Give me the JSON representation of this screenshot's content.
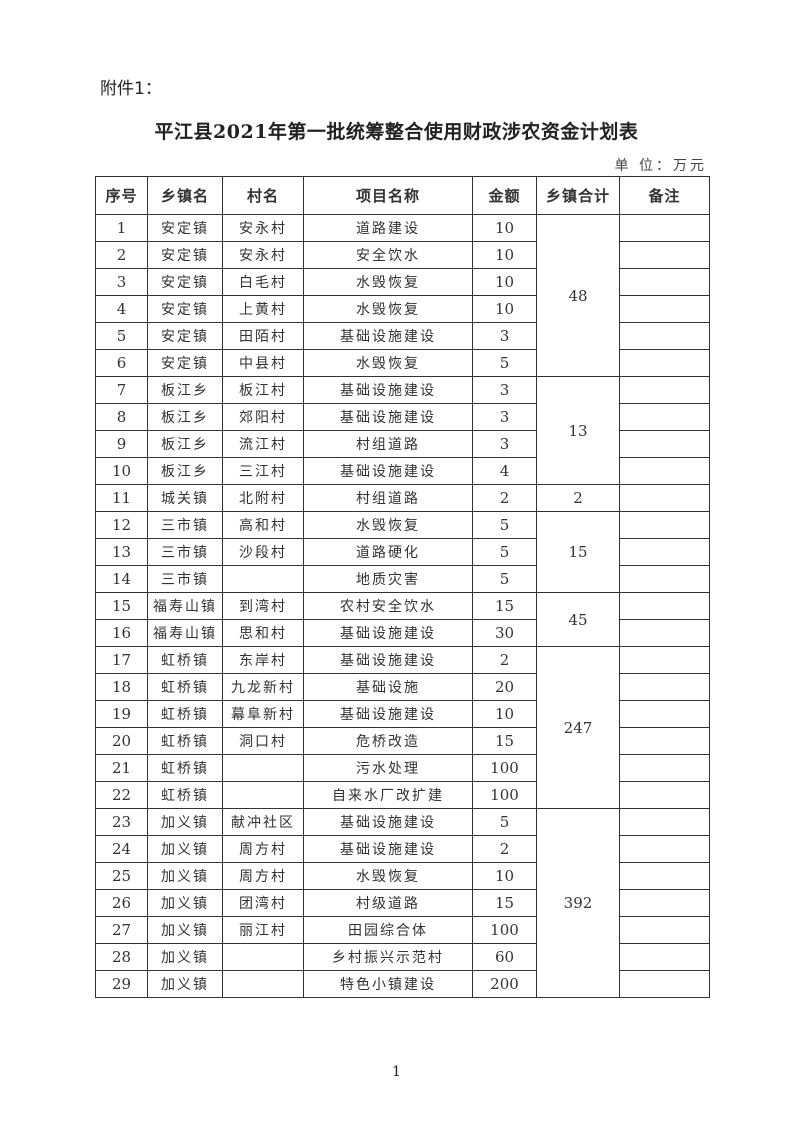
{
  "attachment_label": "附件1：",
  "title": "平江县2021年第一批统筹整合使用财政涉农资金计划表",
  "unit": "单 位：万元",
  "headers": [
    "序号",
    "乡镇名",
    "村名",
    "项目名称",
    "金额",
    "乡镇合计",
    "备注"
  ],
  "rows": [
    {
      "no": "1",
      "town": "安定镇",
      "village": "安永村",
      "project": "道路建设",
      "amount": "10"
    },
    {
      "no": "2",
      "town": "安定镇",
      "village": "安永村",
      "project": "安全饮水",
      "amount": "10"
    },
    {
      "no": "3",
      "town": "安定镇",
      "village": "白毛村",
      "project": "水毁恢复",
      "amount": "10"
    },
    {
      "no": "4",
      "town": "安定镇",
      "village": "上黄村",
      "project": "水毁恢复",
      "amount": "10"
    },
    {
      "no": "5",
      "town": "安定镇",
      "village": "田陌村",
      "project": "基础设施建设",
      "amount": "3"
    },
    {
      "no": "6",
      "town": "安定镇",
      "village": "中县村",
      "project": "水毁恢复",
      "amount": "5"
    },
    {
      "no": "7",
      "town": "板江乡",
      "village": "板江村",
      "project": "基础设施建设",
      "amount": "3"
    },
    {
      "no": "8",
      "town": "板江乡",
      "village": "郊阳村",
      "project": "基础设施建设",
      "amount": "3"
    },
    {
      "no": "9",
      "town": "板江乡",
      "village": "流江村",
      "project": "村组道路",
      "amount": "3"
    },
    {
      "no": "10",
      "town": "板江乡",
      "village": "三江村",
      "project": "基础设施建设",
      "amount": "4"
    },
    {
      "no": "11",
      "town": "城关镇",
      "village": "北附村",
      "project": "村组道路",
      "amount": "2"
    },
    {
      "no": "12",
      "town": "三市镇",
      "village": "高和村",
      "project": "水毁恢复",
      "amount": "5"
    },
    {
      "no": "13",
      "town": "三市镇",
      "village": "沙段村",
      "project": "道路硬化",
      "amount": "5"
    },
    {
      "no": "14",
      "town": "三市镇",
      "village": "",
      "project": "地质灾害",
      "amount": "5"
    },
    {
      "no": "15",
      "town": "福寿山镇",
      "village": "到湾村",
      "project": "农村安全饮水",
      "amount": "15"
    },
    {
      "no": "16",
      "town": "福寿山镇",
      "village": "思和村",
      "project": "基础设施建设",
      "amount": "30"
    },
    {
      "no": "17",
      "town": "虹桥镇",
      "village": "东岸村",
      "project": "基础设施建设",
      "amount": "2"
    },
    {
      "no": "18",
      "town": "虹桥镇",
      "village": "九龙新村",
      "project": "基础设施",
      "amount": "20"
    },
    {
      "no": "19",
      "town": "虹桥镇",
      "village": "幕阜新村",
      "project": "基础设施建设",
      "amount": "10"
    },
    {
      "no": "20",
      "town": "虹桥镇",
      "village": "洞口村",
      "project": "危桥改造",
      "amount": "15"
    },
    {
      "no": "21",
      "town": "虹桥镇",
      "village": "",
      "project": "污水处理",
      "amount": "100"
    },
    {
      "no": "22",
      "town": "虹桥镇",
      "village": "",
      "project": "自来水厂改扩建",
      "amount": "100"
    },
    {
      "no": "23",
      "town": "加义镇",
      "village": "献冲社区",
      "project": "基础设施建设",
      "amount": "5"
    },
    {
      "no": "24",
      "town": "加义镇",
      "village": "周方村",
      "project": "基础设施建设",
      "amount": "2"
    },
    {
      "no": "25",
      "town": "加义镇",
      "village": "周方村",
      "project": "水毁恢复",
      "amount": "10"
    },
    {
      "no": "26",
      "town": "加义镇",
      "village": "团湾村",
      "project": "村级道路",
      "amount": "15"
    },
    {
      "no": "27",
      "town": "加义镇",
      "village": "丽江村",
      "project": "田园综合体",
      "amount": "100"
    },
    {
      "no": "28",
      "town": "加义镇",
      "village": "",
      "project": "乡村振兴示范村",
      "amount": "60"
    },
    {
      "no": "29",
      "town": "加义镇",
      "village": "",
      "project": "特色小镇建设",
      "amount": "200"
    }
  ],
  "town_totals": [
    {
      "rows": 6,
      "total": "48"
    },
    {
      "rows": 4,
      "total": "13"
    },
    {
      "rows": 1,
      "total": "2"
    },
    {
      "rows": 3,
      "total": "15"
    },
    {
      "rows": 2,
      "total": "45"
    },
    {
      "rows": 6,
      "total": "247"
    },
    {
      "rows": 7,
      "total": "392"
    }
  ],
  "page_number": "1"
}
